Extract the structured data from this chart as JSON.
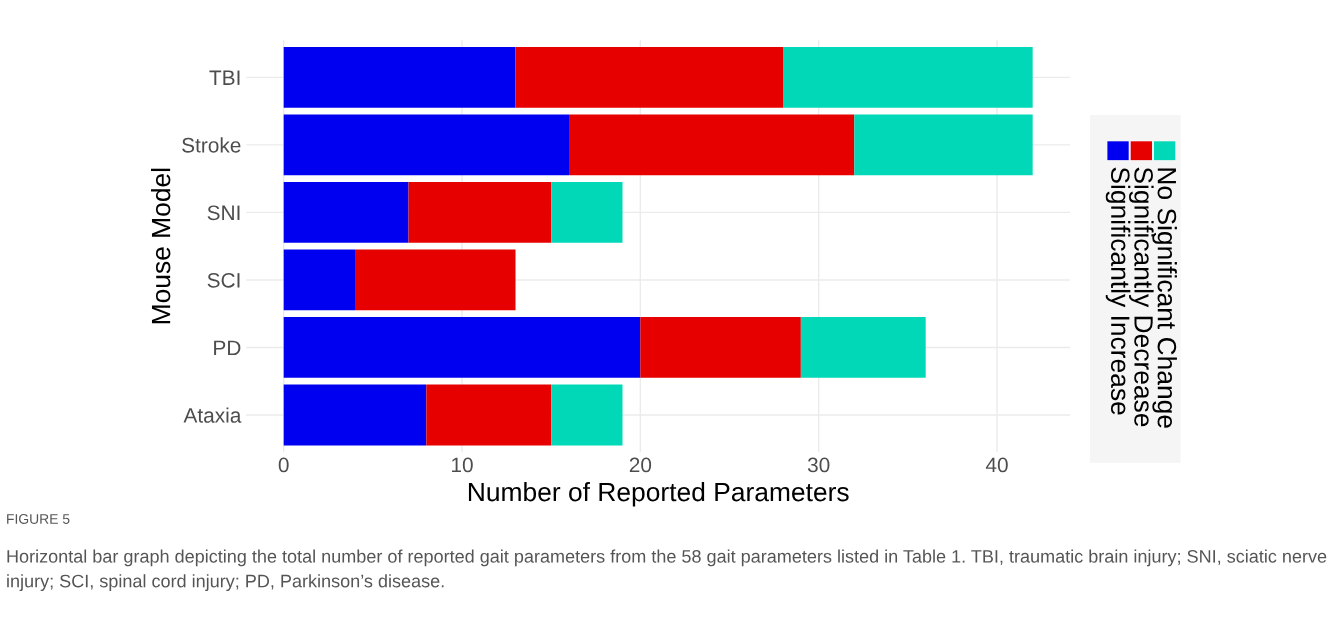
{
  "chart_data": {
    "type": "bar",
    "orientation": "horizontal",
    "stacked": true,
    "categories": [
      "TBI",
      "Stroke",
      "SNI",
      "SCI",
      "PD",
      "Ataxia"
    ],
    "series": [
      {
        "name": "Significantly Increase",
        "color": "#0000f0",
        "values": [
          13,
          16,
          7,
          4,
          20,
          8
        ]
      },
      {
        "name": "Significantly Decrease",
        "color": "#e60000",
        "values": [
          15,
          16,
          8,
          9,
          9,
          7
        ]
      },
      {
        "name": "No Significant Change",
        "color": "#00d8b8",
        "values": [
          14,
          10,
          4,
          0,
          7,
          4
        ]
      }
    ],
    "xlim": [
      -2.1,
      44.1
    ],
    "xticks": [
      0,
      10,
      20,
      30,
      40
    ],
    "xlabel": "Number of Reported Parameters",
    "ylabel": "Mouse Model",
    "grid": true,
    "legend": "right",
    "annotations": [
      "FIGURE 5",
      "Horizontal bar graph depicting the total number of reported gait parameters from the 58 gait parameters listed in Table 1. TBI, traumatic brain injury; SNI, sciatic nerve injury; SCI, spinal cord injury; PD, Parkinson’s disease."
    ]
  }
}
